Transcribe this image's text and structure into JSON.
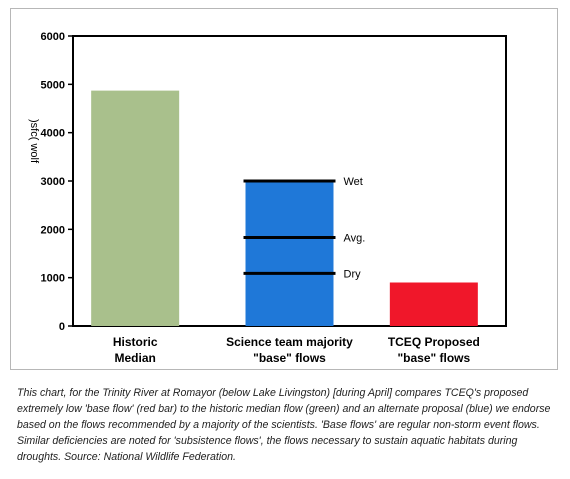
{
  "chart_data": {
    "type": "bar",
    "categories": [
      [
        "Historic",
        "Median"
      ],
      [
        "Science team majority",
        "\"base\" flows"
      ],
      [
        "TCEQ Proposed",
        "\"base\" flows"
      ]
    ],
    "values": [
      4870,
      3000,
      900
    ],
    "colors": [
      "#a9c08c",
      "#1f78d8",
      "#f0172a"
    ],
    "ylim": [
      0,
      6000
    ],
    "yticks": [
      0,
      1000,
      2000,
      3000,
      4000,
      5000,
      6000
    ],
    "ylabel": ")sfc( wolf",
    "grid": false,
    "annotations": [
      {
        "label": "Wet",
        "value": 3000
      },
      {
        "label": "Avg.",
        "value": 1830
      },
      {
        "label": "Dry",
        "value": 1090
      }
    ]
  },
  "colors": {
    "bar_outline": "#000000",
    "annotation_line": "#000000"
  },
  "caption": "This chart, for the Trinity River at Romayor (below Lake Livingston) [during April] compares TCEQ's proposed extremely low 'base flow' (red bar) to the historic median flow (green) and an alternate proposal (blue) we endorse based on the flows recommended by a majority of the scientists. 'Base flows' are regular non-storm event flows. Similar deficiencies are noted for 'subsistence flows', the flows necessary to sustain aquatic habitats during droughts.  Source: National Wildlife Federation."
}
